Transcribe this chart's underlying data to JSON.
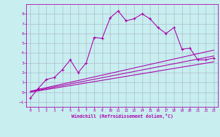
{
  "xlabel": "Windchill (Refroidissement éolien,°C)",
  "bg_color": "#c8eef0",
  "line_color": "#aa00aa",
  "grid_color": "#aabbcc",
  "xlim": [
    -0.5,
    23.5
  ],
  "ylim": [
    -1.5,
    9.0
  ],
  "xticks": [
    0,
    1,
    2,
    3,
    4,
    5,
    6,
    7,
    8,
    9,
    10,
    11,
    12,
    13,
    14,
    15,
    16,
    17,
    18,
    19,
    20,
    21,
    22,
    23
  ],
  "yticks": [
    -1,
    0,
    1,
    2,
    3,
    4,
    5,
    6,
    7,
    8
  ],
  "main_x": [
    0,
    1,
    2,
    3,
    4,
    5,
    6,
    7,
    8,
    9,
    10,
    11,
    12,
    13,
    14,
    15,
    16,
    17,
    18,
    19,
    20,
    21,
    22,
    23
  ],
  "main_y": [
    -0.6,
    0.4,
    1.3,
    1.5,
    2.3,
    3.3,
    2.0,
    3.0,
    5.6,
    5.5,
    7.6,
    8.3,
    7.3,
    7.5,
    8.0,
    7.5,
    6.6,
    6.0,
    6.6,
    4.4,
    4.5,
    3.3,
    3.3,
    3.5
  ],
  "line1_x": [
    0,
    23
  ],
  "line1_y": [
    0.1,
    4.3
  ],
  "line2_x": [
    0,
    23
  ],
  "line2_y": [
    0.05,
    3.7
  ],
  "line3_x": [
    0,
    23
  ],
  "line3_y": [
    0.0,
    3.1
  ]
}
